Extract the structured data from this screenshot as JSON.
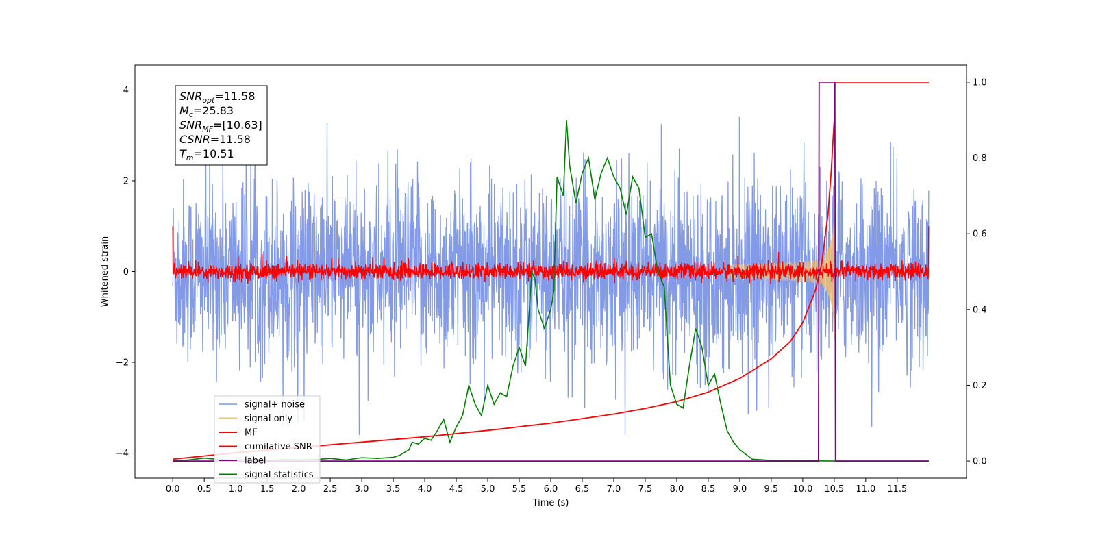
{
  "chart_data": {
    "type": "line",
    "xlabel": "Time (s)",
    "ylabel": "Whitened strain",
    "xlim": [
      -0.6,
      12.6
    ],
    "ylim": [
      -4.55,
      4.55
    ],
    "y2lim": [
      -0.045,
      1.045
    ],
    "x_ticks": [
      "0.0",
      "0.5",
      "1.0",
      "1.5",
      "2.0",
      "2.5",
      "3.0",
      "3.5",
      "4.0",
      "4.5",
      "5.0",
      "5.5",
      "6.0",
      "6.5",
      "7.0",
      "7.5",
      "8.0",
      "8.5",
      "9.0",
      "9.5",
      "10.0",
      "10.5",
      "11.0",
      "11.5"
    ],
    "y_ticks": [
      4,
      2,
      0,
      -2,
      -4
    ],
    "y2_ticks": [
      "0.0",
      "0.2",
      "0.4",
      "0.6",
      "0.8",
      "1.0"
    ],
    "legend_position": "lower-left",
    "info_box": {
      "lines": [
        {
          "sym": "SNR",
          "sub": "opt",
          "val": "=11.58"
        },
        {
          "sym": "M",
          "sub": "c",
          "val": "=25.83"
        },
        {
          "sym": "SNR",
          "sub": "MF",
          "val": "=[10.63]"
        },
        {
          "sym": "CSNR",
          "sub": "",
          "val": "=11.58"
        },
        {
          "sym": "T",
          "sub": "m",
          "val": "=10.51"
        }
      ]
    },
    "series": [
      {
        "name": "signal+ noise",
        "color": "#7b95e6",
        "axis": "left",
        "kind": "noise",
        "envelope": [
          -3.6,
          4.1
        ],
        "x_range": [
          0.0,
          12.0
        ]
      },
      {
        "name": "signal only",
        "color": "#f5c06b",
        "axis": "left",
        "kind": "chirp",
        "peak_time": 10.51,
        "peak_amplitude": 1.0
      },
      {
        "name": "MF",
        "color": "#ff0000",
        "axis": "left",
        "kind": "mf_noise",
        "amplitude": 0.15,
        "edge_value": 1.0
      },
      {
        "name": "cumilative SNR",
        "color": "#ff0000",
        "axis": "right",
        "x": [
          0.0,
          1.0,
          2.0,
          3.0,
          4.0,
          5.0,
          6.0,
          7.0,
          7.5,
          8.0,
          8.5,
          9.0,
          9.5,
          9.8,
          10.0,
          10.2,
          10.3,
          10.4,
          10.45,
          10.5,
          10.51,
          10.55,
          11.0,
          12.0
        ],
        "y": [
          0.005,
          0.022,
          0.036,
          0.05,
          0.064,
          0.081,
          0.1,
          0.124,
          0.139,
          0.157,
          0.182,
          0.218,
          0.27,
          0.315,
          0.365,
          0.45,
          0.52,
          0.65,
          0.76,
          0.9,
          1.0,
          1.0,
          1.0,
          1.0
        ]
      },
      {
        "name": "label",
        "color": "#800080",
        "axis": "right",
        "x": [
          0.0,
          10.25,
          10.26,
          10.51,
          10.52,
          12.0
        ],
        "y": [
          0.0,
          0.0,
          1.0,
          1.0,
          0.0,
          0.0
        ]
      },
      {
        "name": "signal statistics",
        "color": "#008000",
        "axis": "right",
        "x": [
          0.0,
          0.25,
          0.5,
          0.75,
          1.0,
          1.25,
          1.5,
          1.75,
          2.0,
          2.25,
          2.5,
          2.75,
          3.0,
          3.25,
          3.5,
          3.6,
          3.75,
          3.8,
          3.9,
          4.0,
          4.1,
          4.2,
          4.3,
          4.4,
          4.5,
          4.6,
          4.7,
          4.8,
          4.9,
          5.0,
          5.1,
          5.2,
          5.3,
          5.4,
          5.5,
          5.6,
          5.7,
          5.75,
          5.8,
          5.9,
          6.0,
          6.05,
          6.1,
          6.2,
          6.25,
          6.3,
          6.4,
          6.5,
          6.6,
          6.7,
          6.8,
          6.9,
          7.0,
          7.1,
          7.2,
          7.3,
          7.4,
          7.5,
          7.6,
          7.7,
          7.8,
          7.9,
          8.0,
          8.1,
          8.2,
          8.3,
          8.4,
          8.5,
          8.6,
          8.7,
          8.8,
          8.9,
          9.0,
          9.2,
          9.5,
          10.0,
          10.5,
          11.0,
          12.0
        ],
        "y": [
          0.0,
          0.003,
          0.008,
          0.004,
          0.002,
          0.005,
          0.002,
          0.004,
          0.003,
          0.004,
          0.007,
          0.003,
          0.009,
          0.007,
          0.01,
          0.015,
          0.03,
          0.05,
          0.045,
          0.06,
          0.055,
          0.08,
          0.11,
          0.05,
          0.09,
          0.12,
          0.2,
          0.15,
          0.12,
          0.2,
          0.15,
          0.18,
          0.17,
          0.25,
          0.3,
          0.25,
          0.5,
          0.48,
          0.4,
          0.35,
          0.4,
          0.45,
          0.75,
          0.7,
          0.9,
          0.78,
          0.68,
          0.76,
          0.8,
          0.69,
          0.76,
          0.8,
          0.75,
          0.72,
          0.65,
          0.75,
          0.72,
          0.59,
          0.6,
          0.5,
          0.46,
          0.2,
          0.15,
          0.14,
          0.25,
          0.35,
          0.3,
          0.2,
          0.23,
          0.15,
          0.08,
          0.05,
          0.03,
          0.005,
          0.002,
          0.001,
          0.0,
          0.0,
          0.0
        ]
      }
    ]
  }
}
